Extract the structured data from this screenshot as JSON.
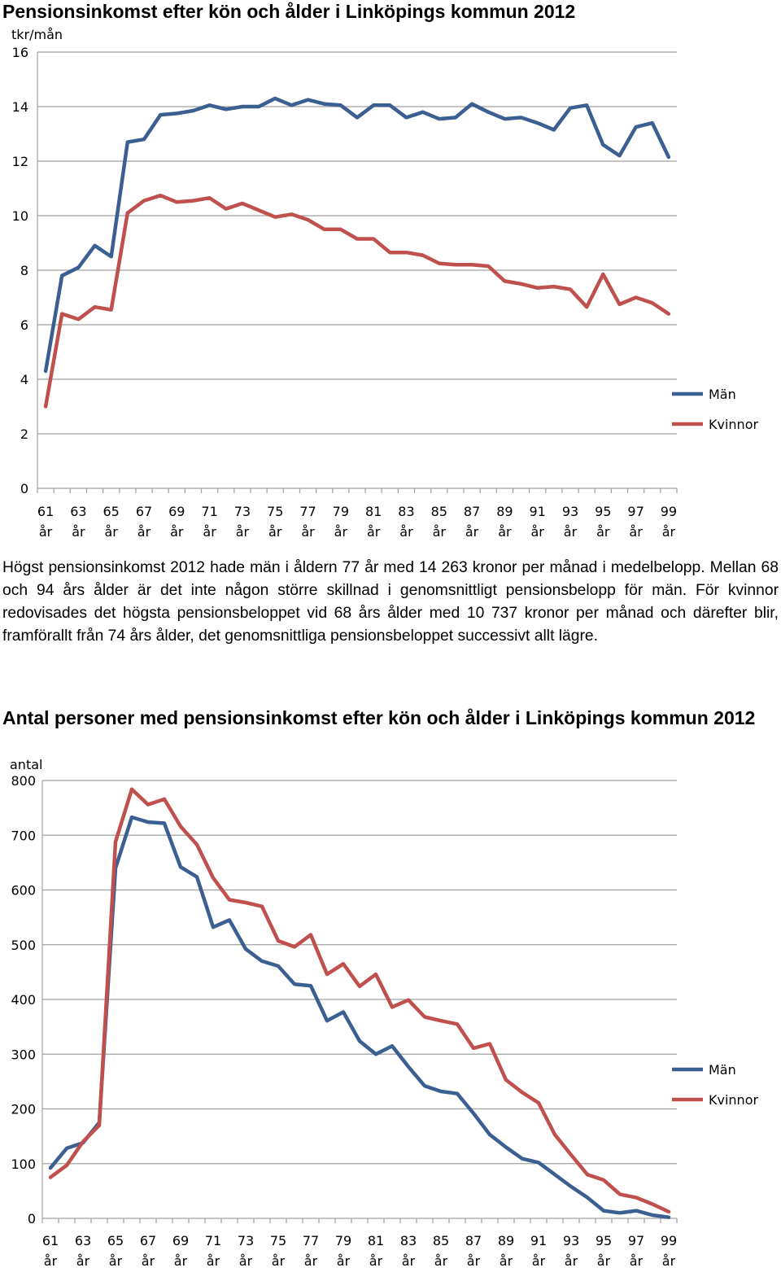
{
  "chart1": {
    "title": "Pensionsinkomst efter kön och ålder i Linköpings kommun 2012",
    "unit": "tkr/mån"
  },
  "paragraph": "Högst pensionsinkomst 2012 hade män i åldern 77 år med 14 263 kronor per månad i medelbelopp. Mellan 68 och 94 års ålder är det inte någon större skillnad i genomsnittligt pensionsbelopp för män. För kvinnor redovisades det högsta pensionsbeloppet vid 68 års ålder med 10 737 kronor per månad och därefter blir, framförallt från 74 års ålder, det genomsnittliga pensionsbeloppet successivt allt lägre.",
  "chart2": {
    "title": "Antal personer med pensionsinkomst efter kön och ålder i Linköpings kommun 2012",
    "unit": "antal"
  },
  "colors": {
    "man": "#3c5f91",
    "kvinna": "#c0504d",
    "grid": "#a0a0a0"
  },
  "chart_data": [
    {
      "type": "line",
      "title": "Pensionsinkomst efter kön och ålder i Linköpings kommun 2012",
      "ylabel": "tkr/mån",
      "xlabel": "",
      "ylim": [
        0,
        16
      ],
      "yticks": [
        0,
        2,
        4,
        6,
        8,
        10,
        12,
        14,
        16
      ],
      "grid": true,
      "legend": "right",
      "x": [
        61,
        62,
        63,
        64,
        65,
        66,
        67,
        68,
        69,
        70,
        71,
        72,
        73,
        74,
        75,
        76,
        77,
        78,
        79,
        80,
        81,
        82,
        83,
        84,
        85,
        86,
        87,
        88,
        89,
        90,
        91,
        92,
        93,
        94,
        95,
        96,
        97,
        98,
        99
      ],
      "xtick_labels": [
        "61 år",
        "63 år",
        "65 år",
        "67 år",
        "69 år",
        "71 år",
        "73 år",
        "75 år",
        "77 år",
        "79 år",
        "81 år",
        "83 år",
        "85 år",
        "87 år",
        "89 år",
        "91 år",
        "93 år",
        "95 år",
        "97 år",
        "99 år"
      ],
      "series": [
        {
          "name": "Män",
          "color": "#3c5f91",
          "values": [
            4.3,
            7.8,
            8.1,
            8.9,
            8.5,
            12.7,
            12.8,
            13.7,
            13.75,
            13.85,
            14.05,
            13.9,
            14.0,
            14.0,
            14.3,
            14.05,
            14.25,
            14.1,
            14.05,
            13.6,
            14.05,
            14.05,
            13.6,
            13.8,
            13.55,
            13.6,
            14.1,
            13.8,
            13.55,
            13.6,
            13.4,
            13.15,
            13.95,
            14.05,
            12.6,
            12.2,
            13.25,
            13.4,
            12.15
          ]
        },
        {
          "name": "Kvinnor",
          "color": "#c0504d",
          "values": [
            3.0,
            6.4,
            6.2,
            6.65,
            6.55,
            10.1,
            10.55,
            10.74,
            10.5,
            10.55,
            10.65,
            10.25,
            10.45,
            10.2,
            9.95,
            10.05,
            9.85,
            9.5,
            9.5,
            9.15,
            9.15,
            8.65,
            8.65,
            8.55,
            8.25,
            8.2,
            8.2,
            8.15,
            7.6,
            7.5,
            7.35,
            7.4,
            7.3,
            6.65,
            7.85,
            6.75,
            7.0,
            6.8,
            6.4
          ]
        }
      ]
    },
    {
      "type": "line",
      "title": "Antal personer med pensionsinkomst efter kön och ålder i Linköpings kommun 2012",
      "ylabel": "antal",
      "xlabel": "",
      "ylim": [
        0,
        800
      ],
      "yticks": [
        0,
        100,
        200,
        300,
        400,
        500,
        600,
        700,
        800
      ],
      "grid": true,
      "legend": "right",
      "x": [
        61,
        62,
        63,
        64,
        65,
        66,
        67,
        68,
        69,
        70,
        71,
        72,
        73,
        74,
        75,
        76,
        77,
        78,
        79,
        80,
        81,
        82,
        83,
        84,
        85,
        86,
        87,
        88,
        89,
        90,
        91,
        92,
        93,
        94,
        95,
        96,
        97,
        98,
        99
      ],
      "xtick_labels": [
        "61 år",
        "63 år",
        "65 år",
        "67 år",
        "69 år",
        "71 år",
        "73 år",
        "75 år",
        "77 år",
        "79 år",
        "81 år",
        "83 år",
        "85 år",
        "87 år",
        "89 år",
        "91 år",
        "93 år",
        "95 år",
        "97 år",
        "99 år"
      ],
      "series": [
        {
          "name": "Män",
          "color": "#3c5f91",
          "values": [
            92,
            128,
            138,
            175,
            640,
            733,
            724,
            722,
            642,
            624,
            532,
            545,
            492,
            470,
            461,
            428,
            425,
            361,
            377,
            324,
            300,
            315,
            277,
            242,
            232,
            228,
            192,
            153,
            130,
            109,
            102,
            80,
            58,
            38,
            14,
            10,
            14,
            6,
            2
          ]
        },
        {
          "name": "Kvinnor",
          "color": "#c0504d",
          "values": [
            75,
            97,
            140,
            170,
            688,
            784,
            756,
            766,
            716,
            683,
            622,
            582,
            577,
            570,
            507,
            496,
            518,
            446,
            465,
            424,
            446,
            386,
            399,
            368,
            361,
            355,
            311,
            319,
            253,
            230,
            211,
            153,
            116,
            80,
            70,
            44,
            38,
            26,
            12
          ]
        }
      ]
    }
  ]
}
